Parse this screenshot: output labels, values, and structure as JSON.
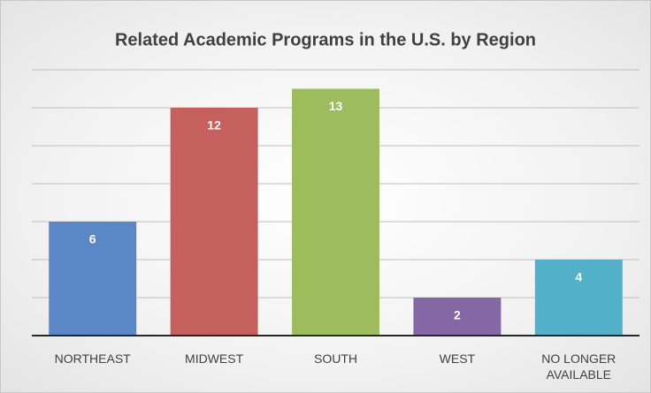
{
  "chart_data": {
    "type": "bar",
    "title": "Related Academic Programs in the U.S. by Region",
    "categories": [
      "NORTHEAST",
      "MIDWEST",
      "SOUTH",
      "WEST",
      "NO LONGER AVAILABLE"
    ],
    "values": [
      6,
      12,
      13,
      2,
      4
    ],
    "colors": [
      "#5b87c6",
      "#c6605d",
      "#9dbd5d",
      "#8468a6",
      "#52b1c8"
    ],
    "ylim": [
      0,
      14
    ],
    "yticks": [
      0,
      2,
      4,
      6,
      8,
      10,
      12,
      14
    ],
    "grid": true
  }
}
